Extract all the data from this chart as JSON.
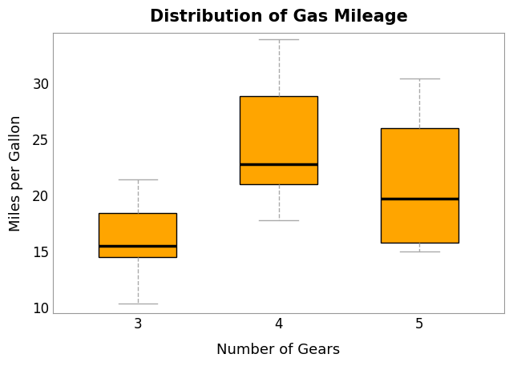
{
  "title": "Distribution of Gas Mileage",
  "xlabel": "Number of Gears",
  "ylabel": "Miles per Gallon",
  "background_color": "#ffffff",
  "box_color": "#FFA500",
  "median_color": "#000000",
  "whisker_color": "#aaaaaa",
  "cap_color": "#aaaaaa",
  "box_edge_color": "#000000",
  "categories": [
    "3",
    "4",
    "5"
  ],
  "box_data": [
    {
      "label": "3",
      "whislo": 10.4,
      "q1": 14.5,
      "med": 15.5,
      "q3": 18.4,
      "whishi": 21.4,
      "fliers": []
    },
    {
      "label": "4",
      "whislo": 17.8,
      "q1": 21.0,
      "med": 22.8,
      "q3": 28.85,
      "whishi": 33.9,
      "fliers": []
    },
    {
      "label": "5",
      "whislo": 15.0,
      "q1": 15.8,
      "med": 19.7,
      "q3": 26.0,
      "whishi": 30.4,
      "fliers": []
    }
  ],
  "ylim": [
    9.5,
    34.5
  ],
  "yticks": [
    10,
    15,
    20,
    25,
    30
  ],
  "title_fontsize": 15,
  "axis_label_fontsize": 13,
  "tick_fontsize": 12,
  "box_width": 0.55,
  "plot_bgcolor": "#ffffff",
  "spine_color": "#999999"
}
